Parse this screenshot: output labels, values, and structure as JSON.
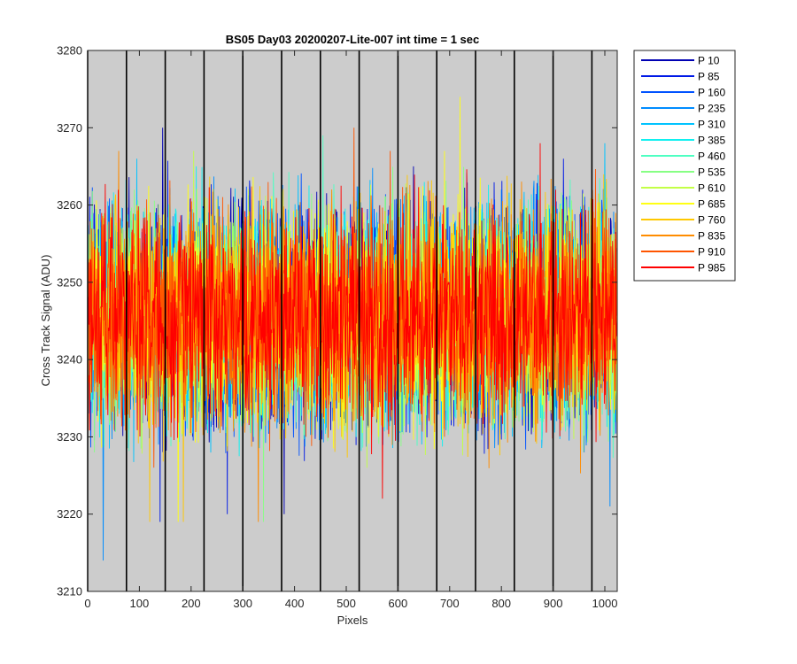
{
  "chart_data": {
    "type": "line",
    "title": "BS05 Day03 20200207-Lite-007 int time = 1 sec",
    "xlabel": "Pixels",
    "ylabel": "Cross Track Signal (ADU)",
    "xlim": [
      0,
      1024
    ],
    "ylim": [
      3210,
      3280
    ],
    "xticks": [
      0,
      100,
      200,
      300,
      400,
      500,
      600,
      700,
      800,
      900,
      1000
    ],
    "yticks": [
      3210,
      3220,
      3230,
      3240,
      3250,
      3260,
      3270,
      3280
    ],
    "xtick_labels": [
      "0",
      "100",
      "200",
      "300",
      "400",
      "500",
      "600",
      "700",
      "800",
      "900",
      "1000"
    ],
    "ytick_labels": [
      "3210",
      "3220",
      "3230",
      "3240",
      "3250",
      "3260",
      "3270",
      "3280"
    ],
    "grid": false,
    "plot_background": "#cccccc",
    "vertical_lines_x": [
      0,
      75,
      150,
      225,
      300,
      375,
      450,
      525,
      600,
      675,
      750,
      825,
      900,
      975
    ],
    "vertical_line_color": "#000000",
    "legend_position": "outside top-right",
    "noise": {
      "mean": 3245.5,
      "typical_min": 3226,
      "typical_max": 3266,
      "points_per_series": 1024
    },
    "series": [
      {
        "name": "P 10",
        "color": "#0000b3",
        "extremes": [
          [
            145,
            3270
          ],
          [
            380,
            3220
          ],
          [
            630,
            3265
          ]
        ]
      },
      {
        "name": "P 85",
        "color": "#0019e6",
        "extremes": [
          [
            140,
            3219
          ],
          [
            270,
            3220
          ],
          [
            920,
            3266
          ]
        ]
      },
      {
        "name": "P 160",
        "color": "#0052ff",
        "extremes": [
          [
            770,
            3256
          ],
          [
            960,
            3228
          ]
        ]
      },
      {
        "name": "P 235",
        "color": "#008cff",
        "extremes": [
          [
            30,
            3214
          ],
          [
            1010,
            3221
          ],
          [
            800,
            3262
          ]
        ]
      },
      {
        "name": "P 310",
        "color": "#00c3ff",
        "extremes": [
          [
            95,
            3266
          ],
          [
            540,
            3258
          ],
          [
            1000,
            3268
          ]
        ]
      },
      {
        "name": "P 385",
        "color": "#10f0f0",
        "extremes": [
          [
            210,
            3265
          ],
          [
            690,
            3262
          ]
        ]
      },
      {
        "name": "P 460",
        "color": "#4effc2",
        "extremes": [
          [
            455,
            3269
          ],
          [
            360,
            3260
          ]
        ]
      },
      {
        "name": "P 535",
        "color": "#87ff84",
        "extremes": [
          [
            340,
            3219
          ],
          [
            90,
            3262
          ]
        ]
      },
      {
        "name": "P 610",
        "color": "#c3ff47",
        "extremes": [
          [
            205,
            3267
          ],
          [
            540,
            3226
          ]
        ]
      },
      {
        "name": "P 685",
        "color": "#ffff14",
        "extremes": [
          [
            720,
            3274
          ],
          [
            175,
            3219
          ],
          [
            690,
            3267
          ]
        ]
      },
      {
        "name": "P 760",
        "color": "#ffc800",
        "extremes": [
          [
            120,
            3219
          ],
          [
            185,
            3219
          ],
          [
            95,
            3260
          ]
        ]
      },
      {
        "name": "P 835",
        "color": "#ff8c00",
        "extremes": [
          [
            330,
            3219
          ],
          [
            60,
            3267
          ]
        ]
      },
      {
        "name": "P 910",
        "color": "#ff5500",
        "extremes": [
          [
            515,
            3270
          ],
          [
            585,
            3267
          ],
          [
            690,
            3230
          ]
        ]
      },
      {
        "name": "P 985",
        "color": "#ff0000",
        "extremes": [
          [
            570,
            3222
          ],
          [
            525,
            3268
          ],
          [
            875,
            3268
          ]
        ]
      }
    ]
  }
}
